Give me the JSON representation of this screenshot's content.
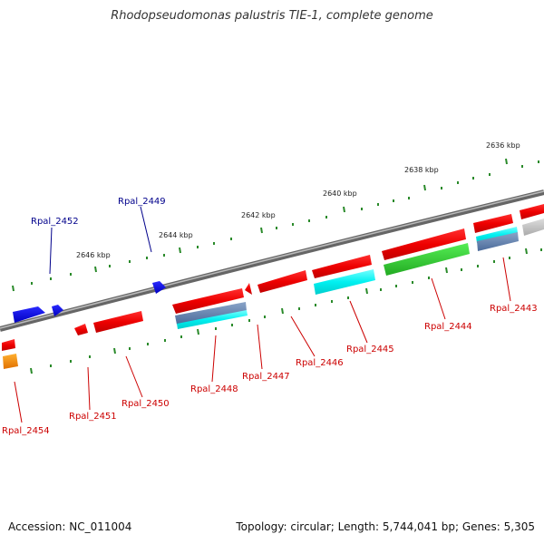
{
  "title": "Rhodopseudomonas palustris TIE-1, complete genome",
  "footer": {
    "accession": "Accession: NC_011004",
    "topology": "Topology: circular; Length: 5,744,041 bp; Genes: 5,305"
  },
  "scale_labels": [
    "2636 kbp",
    "2638 kbp",
    "2640 kbp",
    "2642 kbp",
    "2644 kbp",
    "2646 kbp"
  ],
  "gene_labels": [
    "Rpal_2452",
    "Rpal_2449",
    "Rpal_2454",
    "Rpal_2451",
    "Rpal_2450",
    "Rpal_2448",
    "Rpal_2447",
    "Rpal_2446",
    "Rpal_2445",
    "Rpal_2444",
    "Rpal_2443"
  ],
  "colors": {
    "forward_strand_label": "#00008b",
    "reverse_strand_label": "#cc0000",
    "backbone": "#888888",
    "tick": "#2a8a2a"
  }
}
